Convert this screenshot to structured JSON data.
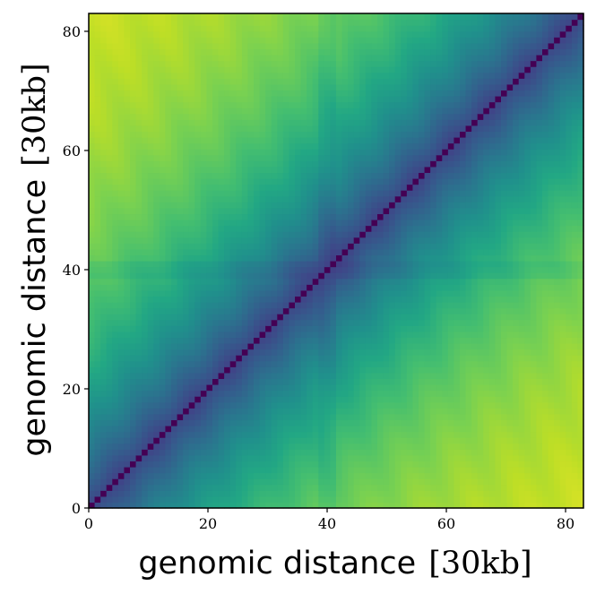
{
  "chart_data": {
    "type": "heatmap",
    "title": "",
    "n": 84,
    "xlabel": {
      "main": "genomic distance",
      "unit": "[30kb]"
    },
    "ylabel": {
      "main": "genomic distance",
      "unit": "[30kb]"
    },
    "xlim": [
      0,
      83
    ],
    "ylim": [
      0,
      83
    ],
    "xticks": [
      0,
      20,
      40,
      60,
      80
    ],
    "yticks": [
      0,
      20,
      40,
      60,
      80
    ],
    "origin": "lower",
    "colormap": "viridis",
    "diagonal_value": 0.0,
    "scale_length": 32,
    "structure_band": {
      "center": 40,
      "width": 2
    },
    "grid": false,
    "legend": "none"
  }
}
